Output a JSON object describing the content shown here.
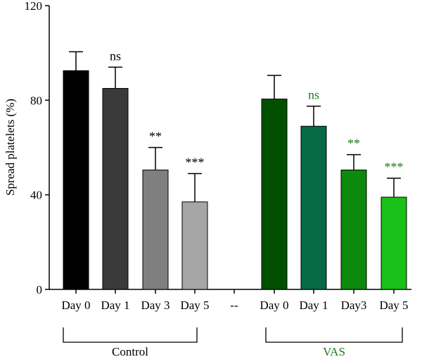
{
  "chart_data": {
    "type": "bar",
    "ylabel": "Spread platelets (%)",
    "ylim": [
      0,
      120
    ],
    "yticks": [
      0,
      40,
      80,
      120
    ],
    "grid": false,
    "categories": [
      "Day 0",
      "Day 1",
      "Day 3",
      "Day 5",
      "--",
      "Day 0",
      "Day 1",
      "Day3",
      "Day 5"
    ],
    "bars": [
      {
        "category": "Day 0",
        "value": 92.5,
        "error": 8,
        "color": "#000000",
        "sig": "",
        "sig_color": "#000000"
      },
      {
        "category": "Day 1",
        "value": 85,
        "error": 9,
        "color": "#3a3a3a",
        "sig": "ns",
        "sig_color": "#000000"
      },
      {
        "category": "Day 3",
        "value": 50.5,
        "error": 9.5,
        "color": "#7f7f7f",
        "sig": "**",
        "sig_color": "#000000"
      },
      {
        "category": "Day 5",
        "value": 37,
        "error": 12,
        "color": "#a6a6a6",
        "sig": "***",
        "sig_color": "#000000"
      },
      {
        "category": "Day 0",
        "value": 80.5,
        "error": 10,
        "color": "#005000",
        "sig": "",
        "sig_color": "#1f7a1f"
      },
      {
        "category": "Day 1",
        "value": 69,
        "error": 8.5,
        "color": "#066b44",
        "sig": "ns",
        "sig_color": "#1f7a1f"
      },
      {
        "category": "Day3",
        "value": 50.5,
        "error": 6.5,
        "color": "#0b8a0b",
        "sig": "**",
        "sig_color": "#1f7a1f"
      },
      {
        "category": "Day 5",
        "value": 39,
        "error": 8,
        "color": "#18c018",
        "sig": "***",
        "sig_color": "#1f7a1f"
      }
    ],
    "groups": [
      {
        "label": "Control",
        "color": "#000000"
      },
      {
        "label": "VAS",
        "color": "#1f7a1f"
      }
    ]
  }
}
